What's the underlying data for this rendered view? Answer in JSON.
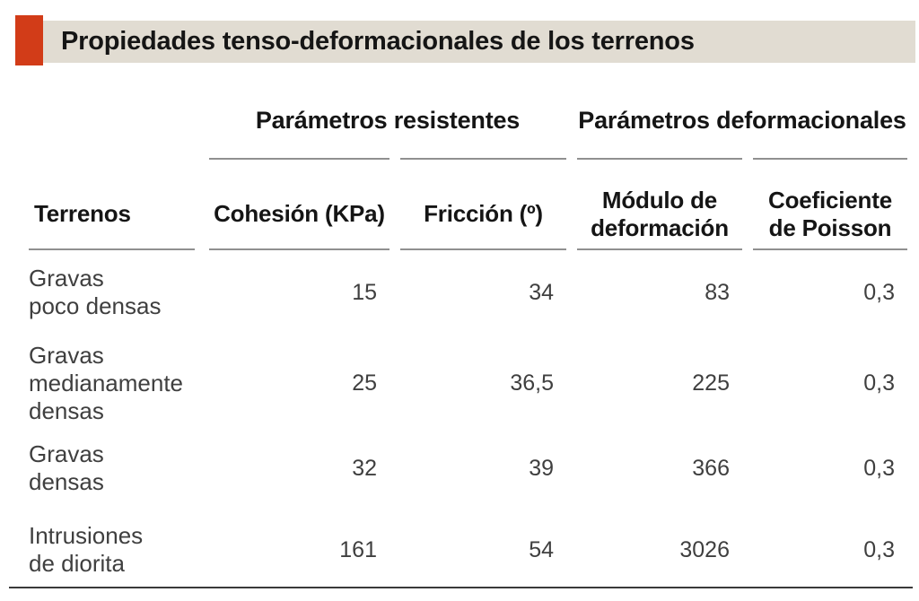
{
  "title": "Propiedades tenso-deformacionales de los terrenos",
  "colors": {
    "accent_red": "#d23c18",
    "title_bar_bg": "#e1dcd2",
    "rule_gray": "#909090",
    "bottom_rule": "#3a3a3a",
    "data_text": "#3f3f3f"
  },
  "table": {
    "group_headers": {
      "resistentes": "Parámetros resistentes",
      "deformacionales": "Parámetros deformacionales"
    },
    "columns": {
      "terrenos": "Terrenos",
      "cohesion": "Cohesión (KPa)",
      "friccion": "Fricción (º)",
      "modulo": "Módulo de\ndeformación",
      "poisson": "Coeficiente\nde Poisson"
    },
    "rows": [
      {
        "terreno": "Gravas\npoco densas",
        "cohesion": "15",
        "friccion": "34",
        "modulo": "83",
        "poisson": "0,3"
      },
      {
        "terreno": "Gravas\nmedianamente\ndensas",
        "cohesion": "25",
        "friccion": "36,5",
        "modulo": "225",
        "poisson": "0,3"
      },
      {
        "terreno": "Gravas\ndensas",
        "cohesion": "32",
        "friccion": "39",
        "modulo": "366",
        "poisson": "0,3"
      },
      {
        "terreno": "Intrusiones\nde diorita",
        "cohesion": "161",
        "friccion": "54",
        "modulo": "3026",
        "poisson": "0,3"
      }
    ]
  }
}
